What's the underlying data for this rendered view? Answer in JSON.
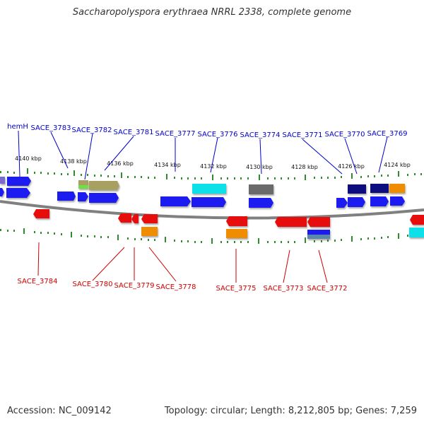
{
  "title": "Saccharopolyspora erythraea NRRL 2338, complete genome",
  "footer": {
    "accession": "Accession: NC_009142",
    "summary": "Topology: circular; Length: 8,212,805 bp; Genes: 7,259"
  },
  "colors": {
    "backbone": "#808080",
    "tick": "#2e8b2e",
    "top_label": "#0000cc",
    "bottom_label": "#cc0000",
    "blue_gene": "#1f1ff0",
    "red_gene": "#e81010",
    "orange_gene": "#f08c00",
    "cyan_gene": "#10e0e8",
    "navy_gene": "#101080",
    "gray_gene": "#6a6a6a",
    "olive_gene": "#a8a060",
    "purple_gene": "#7a6ad0"
  },
  "scale_labels": [
    "4140 kbp",
    "4138 kbp",
    "4136 kbp",
    "4134 kbp",
    "4132 kbp",
    "4130 kbp",
    "4128 kbp",
    "4126 kbp",
    "4124 kbp"
  ],
  "top_labels": [
    "hemH",
    "SACE_3783",
    "SACE_3782",
    "SACE_3781",
    "SACE_3777",
    "SACE_3776",
    "SACE_3774",
    "SACE_3771",
    "SACE_3770",
    "SACE_3769"
  ],
  "bottom_labels": [
    "SACE_3784",
    "SACE_3780",
    "SACE_3779",
    "SACE_3778",
    "SACE_3775",
    "SACE_3773",
    "SACE_3772"
  ]
}
